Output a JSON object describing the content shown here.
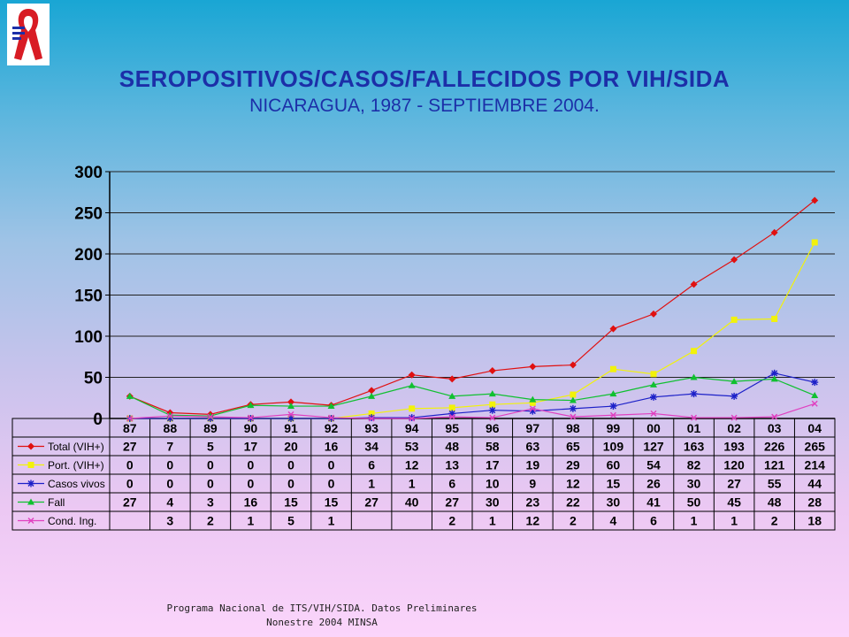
{
  "header": {
    "title": "SEROPOSITIVOS/CASOS/FALLECIDOS POR VIH/SIDA",
    "subtitle": "NICARAGUA, 1987 - SEPTIEMBRE 2004."
  },
  "footer": {
    "line1": "Programa Nacional de ITS/VIH/SIDA.   Datos Preliminares",
    "line2": "Nonestre 2004 MINSA"
  },
  "chart_data": {
    "type": "line",
    "categories": [
      "87",
      "88",
      "89",
      "90",
      "91",
      "92",
      "93",
      "94",
      "95",
      "96",
      "97",
      "98",
      "99",
      "00",
      "01",
      "02",
      "03",
      "04"
    ],
    "ylim": [
      0,
      300
    ],
    "yticks": [
      0,
      50,
      100,
      150,
      200,
      250,
      300
    ],
    "grid": true,
    "legend": "data-table",
    "series": [
      {
        "name": "Total (VIH+)",
        "color": "#e01010",
        "marker": "diamond",
        "values": [
          27,
          7,
          5,
          17,
          20,
          16,
          34,
          53,
          48,
          58,
          63,
          65,
          109,
          127,
          163,
          193,
          226,
          265
        ]
      },
      {
        "name": "Port. (VIH+)",
        "color": "#f2f20a",
        "marker": "square",
        "values": [
          0,
          0,
          0,
          0,
          0,
          0,
          6,
          12,
          13,
          17,
          19,
          29,
          60,
          54,
          82,
          120,
          121,
          214
        ]
      },
      {
        "name": "Casos vivos",
        "color": "#1c20c8",
        "marker": "star",
        "values": [
          0,
          0,
          0,
          0,
          0,
          0,
          1,
          1,
          6,
          10,
          9,
          12,
          15,
          26,
          30,
          27,
          55,
          44
        ]
      },
      {
        "name": "Fall",
        "color": "#10c030",
        "marker": "triangle",
        "values": [
          27,
          4,
          3,
          16,
          15,
          15,
          27,
          40,
          27,
          30,
          23,
          22,
          30,
          41,
          50,
          45,
          48,
          28
        ]
      },
      {
        "name": "Cond. Ing.",
        "color": "#e040c0",
        "marker": "x",
        "values": [
          null,
          3,
          2,
          1,
          5,
          1,
          null,
          null,
          2,
          1,
          12,
          2,
          4,
          6,
          1,
          1,
          2,
          18
        ]
      }
    ]
  }
}
